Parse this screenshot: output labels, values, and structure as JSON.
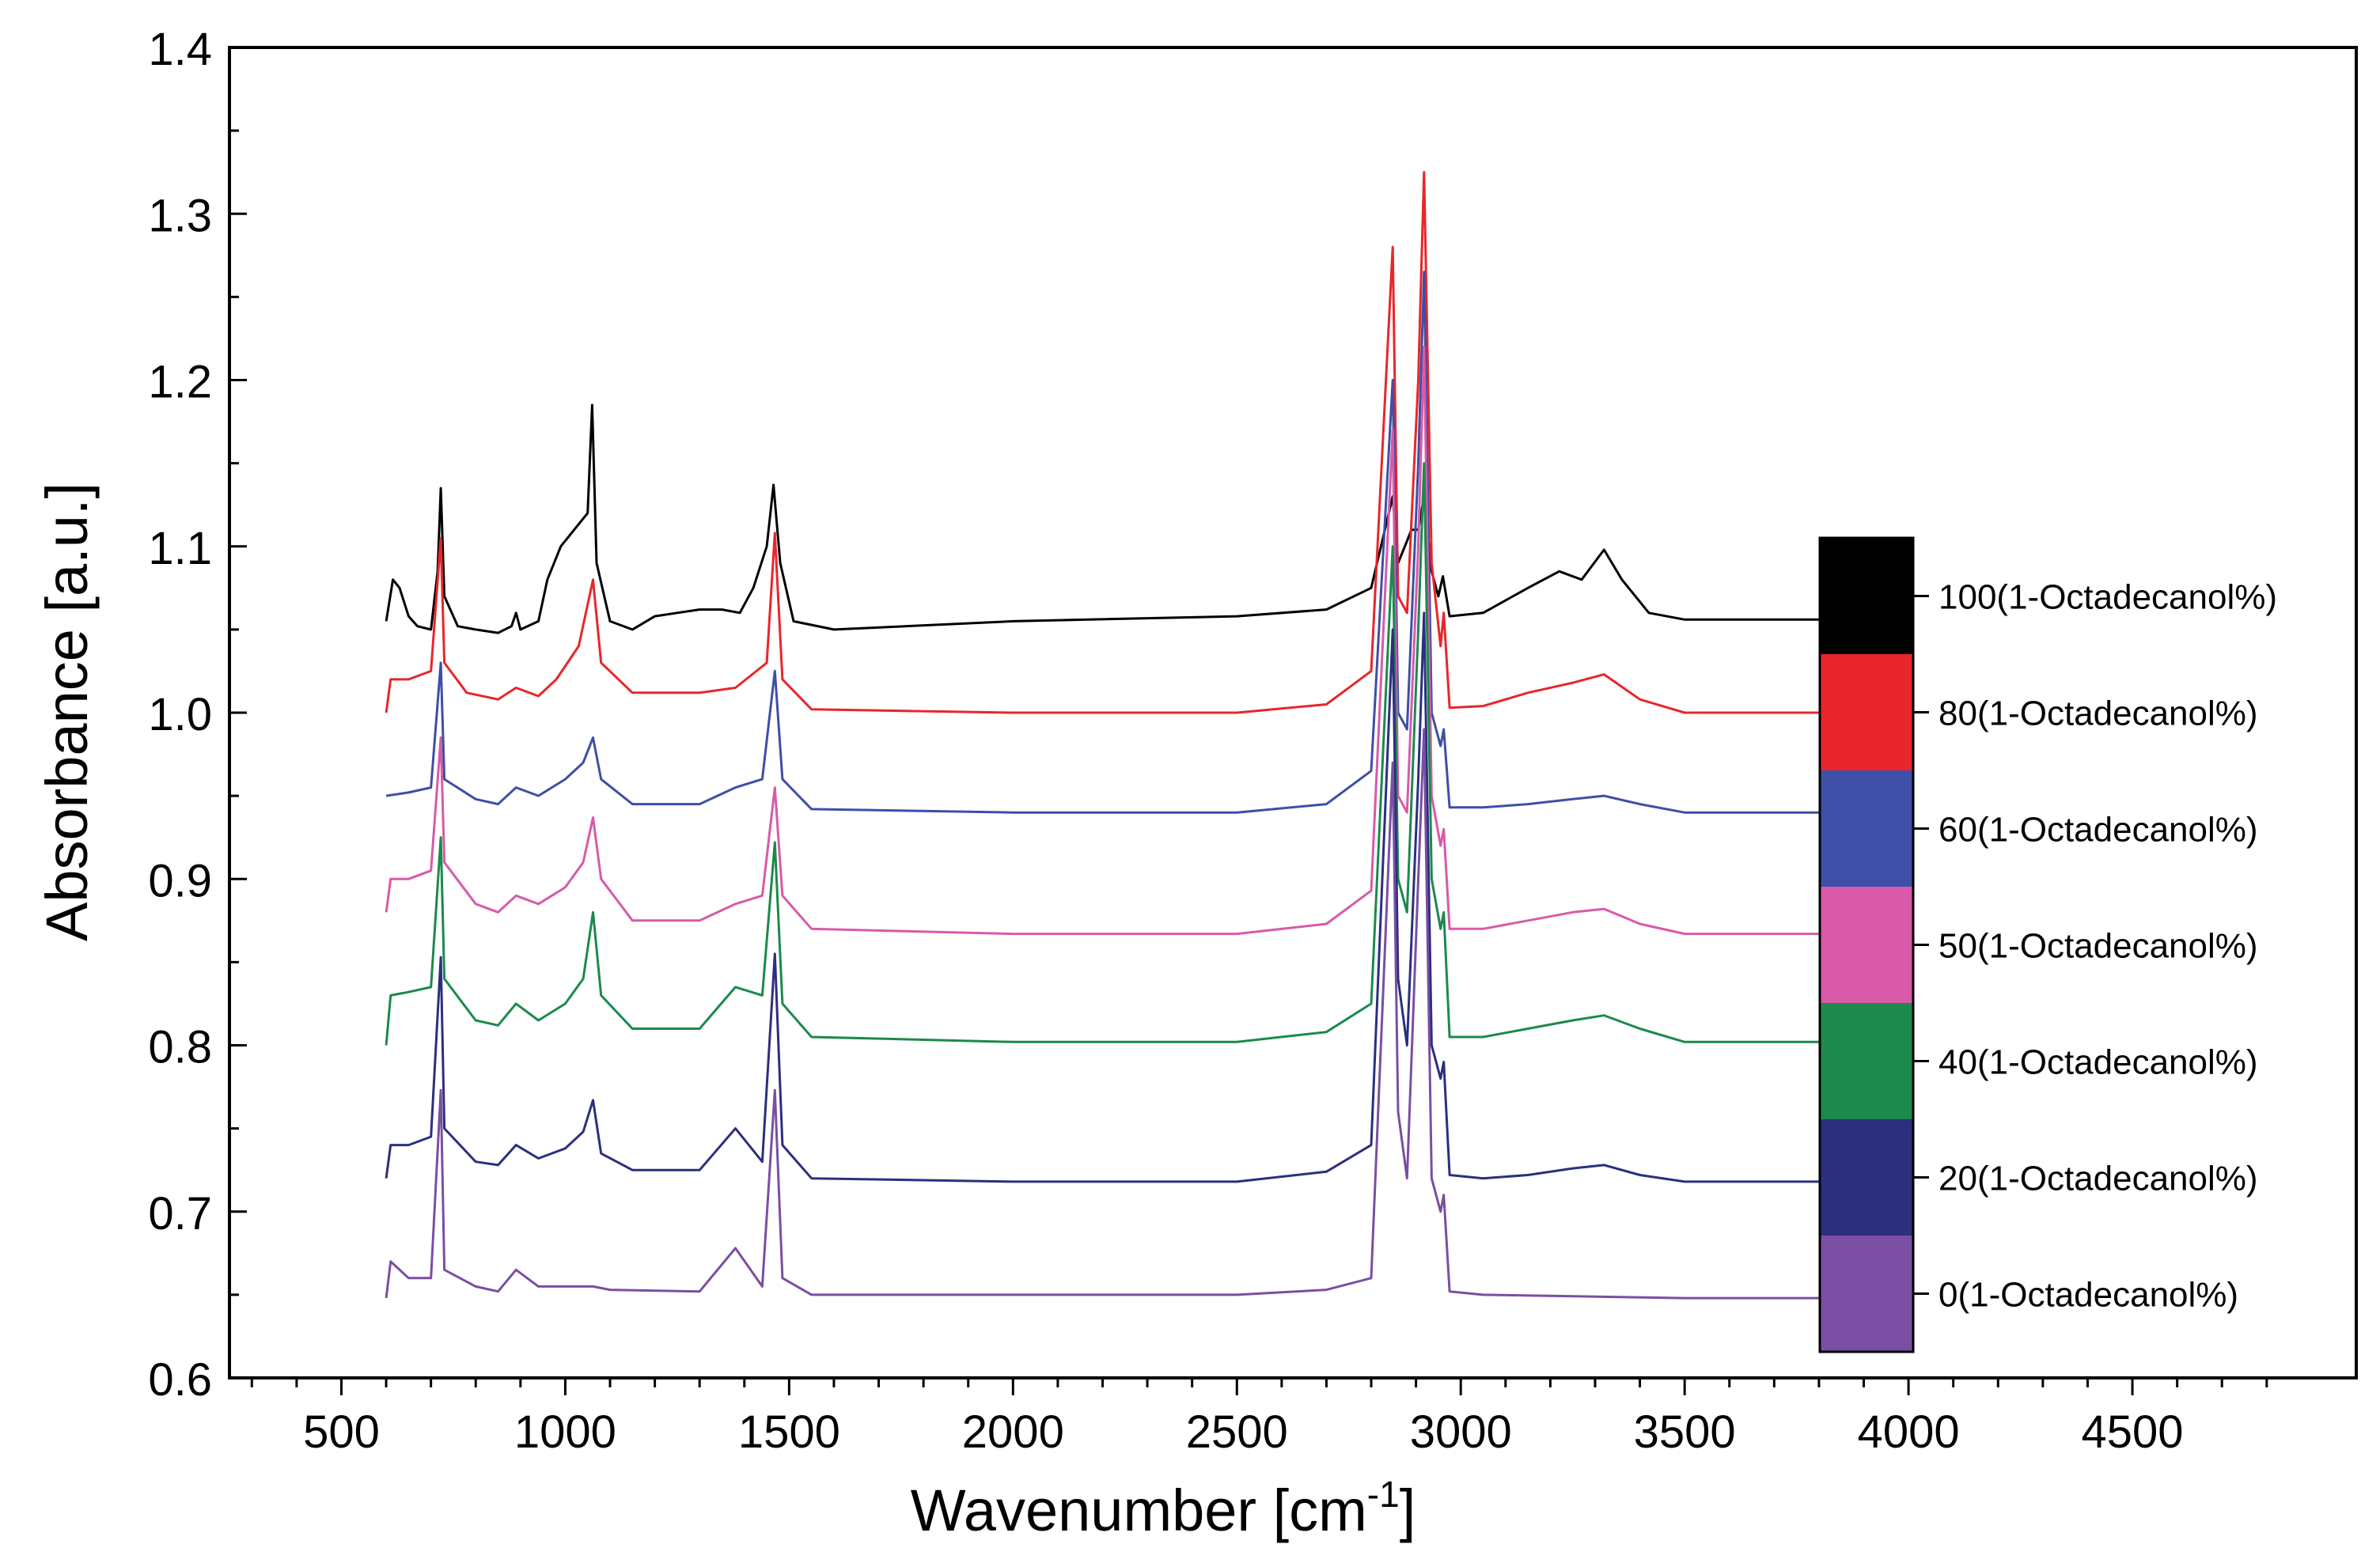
{
  "chart_data": {
    "type": "line",
    "title": "",
    "xlabel": "Wavenumber [cm",
    "xlabel_sup": "-1",
    "xlabel_tail": "]",
    "ylabel": "Absorbance [a.u.]",
    "xlim": [
      250,
      5000
    ],
    "ylim": [
      0.6,
      1.4
    ],
    "x_ticks": [
      500,
      1000,
      1500,
      2000,
      2500,
      3000,
      3500,
      4000,
      4500
    ],
    "y_ticks": [
      0.6,
      0.7,
      0.8,
      0.9,
      1.0,
      1.1,
      1.2,
      1.3,
      1.4
    ],
    "x_tick_labels": [
      "500",
      "1000",
      "1500",
      "2000",
      "2500",
      "3000",
      "3500",
      "4000",
      "4500"
    ],
    "y_tick_labels": [
      "0.6",
      "0.7",
      "0.8",
      "0.9",
      "1.0",
      "1.1",
      "1.2",
      "1.3",
      "1.4"
    ],
    "grid": false,
    "legend_position": "right",
    "series": [
      {
        "name": "100(1-Octadecanol%)",
        "color": "#000000",
        "points": [
          [
            600,
            1.055
          ],
          [
            615,
            1.08
          ],
          [
            630,
            1.075
          ],
          [
            650,
            1.058
          ],
          [
            670,
            1.052
          ],
          [
            700,
            1.05
          ],
          [
            715,
            1.085
          ],
          [
            722,
            1.135
          ],
          [
            730,
            1.07
          ],
          [
            760,
            1.052
          ],
          [
            800,
            1.05
          ],
          [
            850,
            1.048
          ],
          [
            880,
            1.052
          ],
          [
            890,
            1.06
          ],
          [
            900,
            1.05
          ],
          [
            940,
            1.055
          ],
          [
            960,
            1.08
          ],
          [
            975,
            1.09
          ],
          [
            990,
            1.1
          ],
          [
            1005,
            1.105
          ],
          [
            1020,
            1.11
          ],
          [
            1035,
            1.115
          ],
          [
            1050,
            1.12
          ],
          [
            1060,
            1.185
          ],
          [
            1070,
            1.09
          ],
          [
            1100,
            1.055
          ],
          [
            1150,
            1.05
          ],
          [
            1200,
            1.058
          ],
          [
            1250,
            1.06
          ],
          [
            1300,
            1.062
          ],
          [
            1350,
            1.062
          ],
          [
            1390,
            1.06
          ],
          [
            1420,
            1.075
          ],
          [
            1450,
            1.1
          ],
          [
            1465,
            1.137
          ],
          [
            1480,
            1.09
          ],
          [
            1510,
            1.055
          ],
          [
            1600,
            1.05
          ],
          [
            2000,
            1.055
          ],
          [
            2500,
            1.058
          ],
          [
            2700,
            1.062
          ],
          [
            2800,
            1.075
          ],
          [
            2848,
            1.13
          ],
          [
            2860,
            1.09
          ],
          [
            2890,
            1.11
          ],
          [
            2905,
            1.11
          ],
          [
            2918,
            1.13
          ],
          [
            2935,
            1.085
          ],
          [
            2950,
            1.07
          ],
          [
            2960,
            1.082
          ],
          [
            2975,
            1.058
          ],
          [
            3050,
            1.06
          ],
          [
            3150,
            1.075
          ],
          [
            3220,
            1.085
          ],
          [
            3270,
            1.08
          ],
          [
            3320,
            1.098
          ],
          [
            3360,
            1.08
          ],
          [
            3420,
            1.06
          ],
          [
            3500,
            1.056
          ],
          [
            4000,
            1.056
          ]
        ]
      },
      {
        "name": "80(1-Octadecanol%)",
        "color": "#e8262b",
        "points": [
          [
            600,
            1.0
          ],
          [
            610,
            1.02
          ],
          [
            650,
            1.02
          ],
          [
            700,
            1.025
          ],
          [
            722,
            1.105
          ],
          [
            730,
            1.03
          ],
          [
            780,
            1.012
          ],
          [
            850,
            1.008
          ],
          [
            890,
            1.015
          ],
          [
            940,
            1.01
          ],
          [
            980,
            1.02
          ],
          [
            1030,
            1.04
          ],
          [
            1062,
            1.08
          ],
          [
            1080,
            1.03
          ],
          [
            1150,
            1.012
          ],
          [
            1300,
            1.012
          ],
          [
            1380,
            1.015
          ],
          [
            1450,
            1.03
          ],
          [
            1468,
            1.108
          ],
          [
            1485,
            1.02
          ],
          [
            1550,
            1.002
          ],
          [
            2000,
            1.0
          ],
          [
            2500,
            1.0
          ],
          [
            2700,
            1.005
          ],
          [
            2800,
            1.025
          ],
          [
            2848,
            1.28
          ],
          [
            2860,
            1.07
          ],
          [
            2880,
            1.06
          ],
          [
            2905,
            1.2
          ],
          [
            2918,
            1.325
          ],
          [
            2935,
            1.09
          ],
          [
            2955,
            1.04
          ],
          [
            2962,
            1.06
          ],
          [
            2975,
            1.003
          ],
          [
            3050,
            1.004
          ],
          [
            3150,
            1.012
          ],
          [
            3250,
            1.018
          ],
          [
            3320,
            1.023
          ],
          [
            3400,
            1.008
          ],
          [
            3500,
            1.0
          ],
          [
            4000,
            1.0
          ]
        ]
      },
      {
        "name": "60(1-Octadecanol%)",
        "color": "#3d4fa6",
        "points": [
          [
            600,
            0.95
          ],
          [
            650,
            0.952
          ],
          [
            700,
            0.955
          ],
          [
            722,
            1.03
          ],
          [
            730,
            0.96
          ],
          [
            800,
            0.948
          ],
          [
            850,
            0.945
          ],
          [
            890,
            0.955
          ],
          [
            940,
            0.95
          ],
          [
            1000,
            0.96
          ],
          [
            1040,
            0.97
          ],
          [
            1062,
            0.985
          ],
          [
            1080,
            0.96
          ],
          [
            1150,
            0.945
          ],
          [
            1300,
            0.945
          ],
          [
            1380,
            0.955
          ],
          [
            1440,
            0.96
          ],
          [
            1468,
            1.025
          ],
          [
            1485,
            0.96
          ],
          [
            1550,
            0.942
          ],
          [
            2000,
            0.94
          ],
          [
            2500,
            0.94
          ],
          [
            2700,
            0.945
          ],
          [
            2800,
            0.965
          ],
          [
            2848,
            1.2
          ],
          [
            2860,
            1.0
          ],
          [
            2880,
            0.99
          ],
          [
            2905,
            1.15
          ],
          [
            2918,
            1.265
          ],
          [
            2935,
            1.0
          ],
          [
            2955,
            0.98
          ],
          [
            2962,
            0.99
          ],
          [
            2975,
            0.943
          ],
          [
            3050,
            0.943
          ],
          [
            3150,
            0.945
          ],
          [
            3250,
            0.948
          ],
          [
            3320,
            0.95
          ],
          [
            3400,
            0.945
          ],
          [
            3500,
            0.94
          ],
          [
            4000,
            0.94
          ]
        ]
      },
      {
        "name": "50(1-Octadecanol%)",
        "color": "#d85aa8",
        "points": [
          [
            600,
            0.88
          ],
          [
            610,
            0.9
          ],
          [
            650,
            0.9
          ],
          [
            700,
            0.905
          ],
          [
            722,
            0.985
          ],
          [
            730,
            0.91
          ],
          [
            800,
            0.885
          ],
          [
            850,
            0.88
          ],
          [
            890,
            0.89
          ],
          [
            940,
            0.885
          ],
          [
            1000,
            0.895
          ],
          [
            1040,
            0.91
          ],
          [
            1062,
            0.937
          ],
          [
            1080,
            0.9
          ],
          [
            1150,
            0.875
          ],
          [
            1300,
            0.875
          ],
          [
            1380,
            0.885
          ],
          [
            1440,
            0.89
          ],
          [
            1468,
            0.955
          ],
          [
            1485,
            0.89
          ],
          [
            1550,
            0.87
          ],
          [
            2000,
            0.867
          ],
          [
            2500,
            0.867
          ],
          [
            2700,
            0.873
          ],
          [
            2800,
            0.893
          ],
          [
            2848,
            1.17
          ],
          [
            2860,
            0.95
          ],
          [
            2880,
            0.94
          ],
          [
            2905,
            1.1
          ],
          [
            2918,
            1.22
          ],
          [
            2935,
            0.95
          ],
          [
            2955,
            0.92
          ],
          [
            2962,
            0.93
          ],
          [
            2975,
            0.87
          ],
          [
            3050,
            0.87
          ],
          [
            3150,
            0.875
          ],
          [
            3250,
            0.88
          ],
          [
            3320,
            0.882
          ],
          [
            3400,
            0.873
          ],
          [
            3500,
            0.867
          ],
          [
            4000,
            0.867
          ]
        ]
      },
      {
        "name": "40(1-Octadecanol%)",
        "color": "#1b8a4c",
        "points": [
          [
            600,
            0.8
          ],
          [
            610,
            0.83
          ],
          [
            650,
            0.832
          ],
          [
            700,
            0.835
          ],
          [
            722,
            0.925
          ],
          [
            730,
            0.84
          ],
          [
            800,
            0.815
          ],
          [
            850,
            0.812
          ],
          [
            890,
            0.825
          ],
          [
            940,
            0.815
          ],
          [
            1000,
            0.825
          ],
          [
            1040,
            0.84
          ],
          [
            1062,
            0.88
          ],
          [
            1080,
            0.83
          ],
          [
            1150,
            0.81
          ],
          [
            1300,
            0.81
          ],
          [
            1380,
            0.835
          ],
          [
            1440,
            0.83
          ],
          [
            1468,
            0.922
          ],
          [
            1485,
            0.825
          ],
          [
            1550,
            0.805
          ],
          [
            2000,
            0.802
          ],
          [
            2500,
            0.802
          ],
          [
            2700,
            0.808
          ],
          [
            2800,
            0.825
          ],
          [
            2848,
            1.1
          ],
          [
            2860,
            0.9
          ],
          [
            2880,
            0.88
          ],
          [
            2905,
            1.05
          ],
          [
            2918,
            1.15
          ],
          [
            2935,
            0.9
          ],
          [
            2955,
            0.87
          ],
          [
            2962,
            0.88
          ],
          [
            2975,
            0.805
          ],
          [
            3050,
            0.805
          ],
          [
            3150,
            0.81
          ],
          [
            3250,
            0.815
          ],
          [
            3320,
            0.818
          ],
          [
            3400,
            0.81
          ],
          [
            3500,
            0.802
          ],
          [
            4000,
            0.802
          ]
        ]
      },
      {
        "name": "20(1-Octadecanol%)",
        "color": "#2b2f7e",
        "points": [
          [
            600,
            0.72
          ],
          [
            610,
            0.74
          ],
          [
            650,
            0.74
          ],
          [
            700,
            0.745
          ],
          [
            722,
            0.853
          ],
          [
            730,
            0.75
          ],
          [
            800,
            0.73
          ],
          [
            850,
            0.728
          ],
          [
            890,
            0.74
          ],
          [
            940,
            0.732
          ],
          [
            1000,
            0.738
          ],
          [
            1040,
            0.748
          ],
          [
            1062,
            0.767
          ],
          [
            1080,
            0.735
          ],
          [
            1150,
            0.725
          ],
          [
            1300,
            0.725
          ],
          [
            1380,
            0.75
          ],
          [
            1440,
            0.73
          ],
          [
            1468,
            0.855
          ],
          [
            1485,
            0.74
          ],
          [
            1550,
            0.72
          ],
          [
            2000,
            0.718
          ],
          [
            2500,
            0.718
          ],
          [
            2700,
            0.724
          ],
          [
            2800,
            0.74
          ],
          [
            2848,
            1.05
          ],
          [
            2860,
            0.84
          ],
          [
            2880,
            0.8
          ],
          [
            2905,
            0.96
          ],
          [
            2918,
            1.06
          ],
          [
            2935,
            0.8
          ],
          [
            2955,
            0.78
          ],
          [
            2962,
            0.79
          ],
          [
            2975,
            0.722
          ],
          [
            3050,
            0.72
          ],
          [
            3150,
            0.722
          ],
          [
            3250,
            0.726
          ],
          [
            3320,
            0.728
          ],
          [
            3400,
            0.722
          ],
          [
            3500,
            0.718
          ],
          [
            4000,
            0.718
          ]
        ]
      },
      {
        "name": "0(1-Octadecanol%)",
        "color": "#7a4ea3",
        "points": [
          [
            600,
            0.648
          ],
          [
            610,
            0.67
          ],
          [
            650,
            0.66
          ],
          [
            700,
            0.66
          ],
          [
            722,
            0.773
          ],
          [
            730,
            0.665
          ],
          [
            800,
            0.655
          ],
          [
            850,
            0.652
          ],
          [
            890,
            0.665
          ],
          [
            940,
            0.655
          ],
          [
            1000,
            0.655
          ],
          [
            1062,
            0.655
          ],
          [
            1100,
            0.653
          ],
          [
            1300,
            0.652
          ],
          [
            1380,
            0.678
          ],
          [
            1440,
            0.655
          ],
          [
            1468,
            0.773
          ],
          [
            1485,
            0.66
          ],
          [
            1550,
            0.65
          ],
          [
            2000,
            0.65
          ],
          [
            2500,
            0.65
          ],
          [
            2700,
            0.653
          ],
          [
            2800,
            0.66
          ],
          [
            2848,
            0.97
          ],
          [
            2860,
            0.76
          ],
          [
            2880,
            0.72
          ],
          [
            2905,
            0.9
          ],
          [
            2918,
            0.99
          ],
          [
            2935,
            0.72
          ],
          [
            2955,
            0.7
          ],
          [
            2962,
            0.71
          ],
          [
            2975,
            0.652
          ],
          [
            3050,
            0.65
          ],
          [
            3500,
            0.648
          ],
          [
            4000,
            0.648
          ]
        ]
      }
    ],
    "legend_order": [
      "100(1-Octadecanol%)",
      "80(1-Octadecanol%)",
      "60(1-Octadecanol%)",
      "50(1-Octadecanol%)",
      "40(1-Octadecanol%)",
      "20(1-Octadecanol%)",
      "0(1-Octadecanol%)"
    ]
  }
}
